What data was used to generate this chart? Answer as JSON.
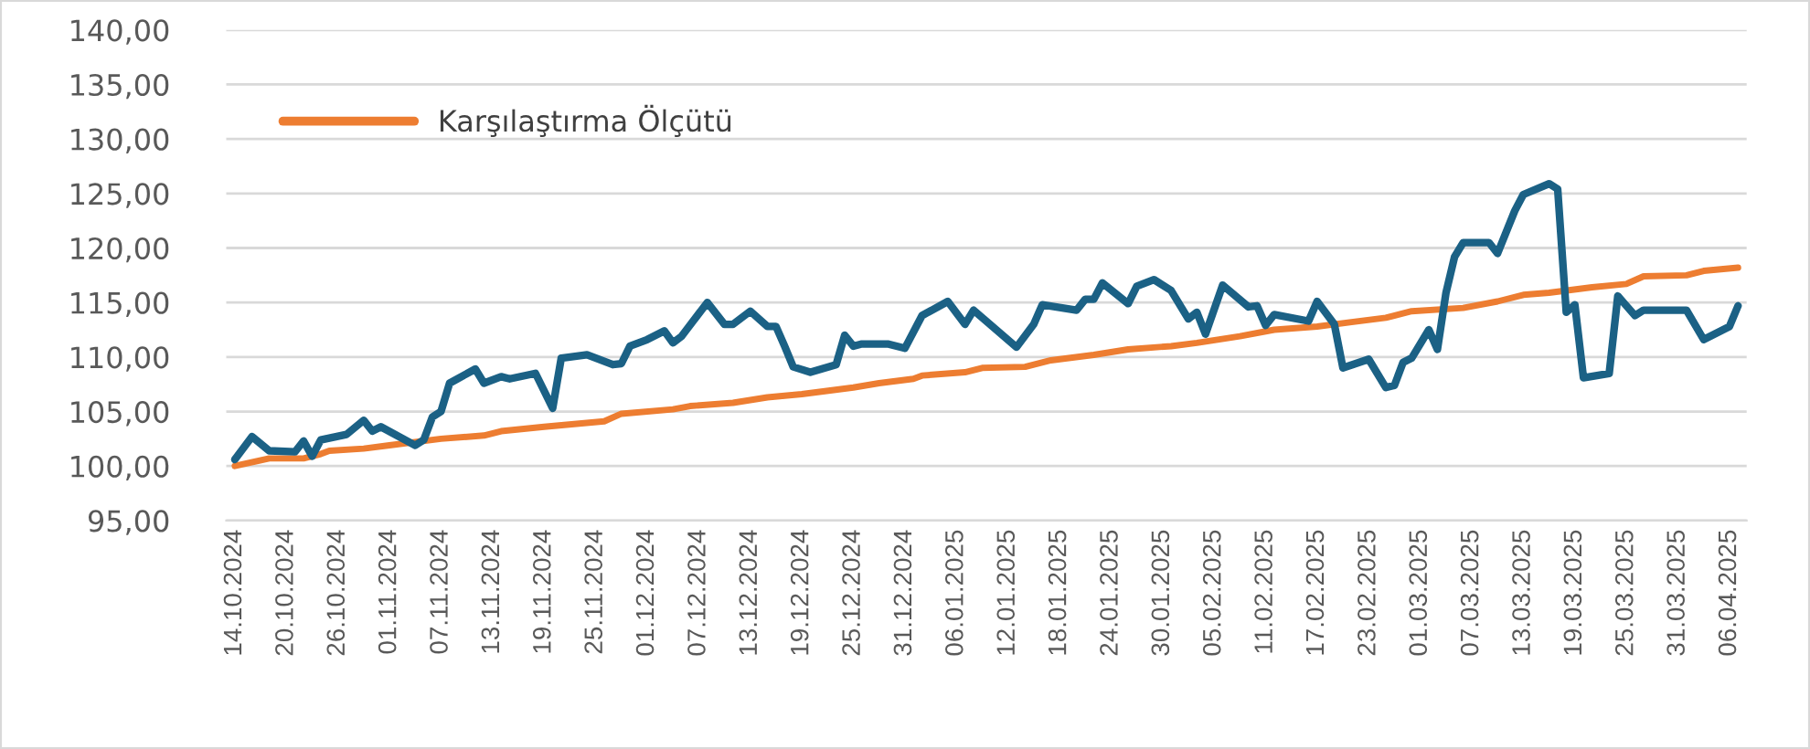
{
  "chart_data": {
    "type": "line",
    "xlim": [
      "2024-10-13",
      "2025-04-08"
    ],
    "xticks": [
      {
        "value": "2024-10-14",
        "label": "14.10.2024"
      },
      {
        "value": "2024-10-20",
        "label": "20.10.2024"
      },
      {
        "value": "2024-10-26",
        "label": "26.10.2024"
      },
      {
        "value": "2024-11-01",
        "label": "01.11.2024"
      },
      {
        "value": "2024-11-07",
        "label": "07.11.2024"
      },
      {
        "value": "2024-11-13",
        "label": "13.11.2024"
      },
      {
        "value": "2024-11-19",
        "label": "19.11.2024"
      },
      {
        "value": "2024-11-25",
        "label": "25.11.2024"
      },
      {
        "value": "2024-12-01",
        "label": "01.12.2024"
      },
      {
        "value": "2024-12-07",
        "label": "07.12.2024"
      },
      {
        "value": "2024-12-13",
        "label": "13.12.2024"
      },
      {
        "value": "2024-12-19",
        "label": "19.12.2024"
      },
      {
        "value": "2024-12-25",
        "label": "25.12.2024"
      },
      {
        "value": "2024-12-31",
        "label": "31.12.2024"
      },
      {
        "value": "2025-01-06",
        "label": "06.01.2025"
      },
      {
        "value": "2025-01-12",
        "label": "12.01.2025"
      },
      {
        "value": "2025-01-18",
        "label": "18.01.2025"
      },
      {
        "value": "2025-01-24",
        "label": "24.01.2025"
      },
      {
        "value": "2025-01-30",
        "label": "30.01.2025"
      },
      {
        "value": "2025-02-05",
        "label": "05.02.2025"
      },
      {
        "value": "2025-02-11",
        "label": "11.02.2025"
      },
      {
        "value": "2025-02-17",
        "label": "17.02.2025"
      },
      {
        "value": "2025-02-23",
        "label": "23.02.2025"
      },
      {
        "value": "2025-03-01",
        "label": "01.03.2025"
      },
      {
        "value": "2025-03-07",
        "label": "07.03.2025"
      },
      {
        "value": "2025-03-13",
        "label": "13.03.2025"
      },
      {
        "value": "2025-03-19",
        "label": "19.03.2025"
      },
      {
        "value": "2025-03-25",
        "label": "25.03.2025"
      },
      {
        "value": "2025-03-31",
        "label": "31.03.2025"
      },
      {
        "value": "2025-04-06",
        "label": "06.04.2025"
      }
    ],
    "ylim": [
      95,
      140
    ],
    "yticks": [
      {
        "value": 95,
        "label": "95,00"
      },
      {
        "value": 100,
        "label": "100,00"
      },
      {
        "value": 105,
        "label": "105,00"
      },
      {
        "value": 110,
        "label": "110,00"
      },
      {
        "value": 115,
        "label": "115,00"
      },
      {
        "value": 120,
        "label": "120,00"
      },
      {
        "value": 125,
        "label": "125,00"
      },
      {
        "value": 130,
        "label": "130,00"
      },
      {
        "value": 135,
        "label": "135,00"
      },
      {
        "value": 140,
        "label": "140,00"
      }
    ],
    "grid": "y",
    "legend": "top left",
    "marker": "none",
    "line_style": "solid",
    "series": [
      {
        "color": "#1b6185",
        "x": [
          "2024-10-14",
          "2024-10-16",
          "2024-10-18",
          "2024-10-21",
          "2024-10-22",
          "2024-10-23",
          "2024-10-24",
          "2024-10-27",
          "2024-10-29",
          "2024-10-30",
          "2024-10-31",
          "2024-11-04",
          "2024-11-05",
          "2024-11-06",
          "2024-11-07",
          "2024-11-08",
          "2024-11-11",
          "2024-11-12",
          "2024-11-14",
          "2024-11-15",
          "2024-11-18",
          "2024-11-20",
          "2024-11-21",
          "2024-11-24",
          "2024-11-27",
          "2024-11-28",
          "2024-11-29",
          "2024-12-01",
          "2024-12-03",
          "2024-12-04",
          "2024-12-05",
          "2024-12-08",
          "2024-12-10",
          "2024-12-11",
          "2024-12-13",
          "2024-12-15",
          "2024-12-16",
          "2024-12-17",
          "2024-12-18",
          "2024-12-20",
          "2024-12-23",
          "2024-12-24",
          "2024-12-25",
          "2024-12-26",
          "2024-12-29",
          "2024-12-31",
          "2025-01-02",
          "2025-01-05",
          "2025-01-07",
          "2025-01-08",
          "2025-01-13",
          "2025-01-15",
          "2025-01-16",
          "2025-01-20",
          "2025-01-21",
          "2025-01-22",
          "2025-01-23",
          "2025-01-26",
          "2025-01-27",
          "2025-01-29",
          "2025-01-31",
          "2025-02-02",
          "2025-02-03",
          "2025-02-04",
          "2025-02-06",
          "2025-02-09",
          "2025-02-10",
          "2025-02-11",
          "2025-02-12",
          "2025-02-16",
          "2025-02-17",
          "2025-02-19",
          "2025-02-20",
          "2025-02-23",
          "2025-02-25",
          "2025-02-26",
          "2025-02-27",
          "2025-02-28",
          "2025-03-02",
          "2025-03-03",
          "2025-03-04",
          "2025-03-05",
          "2025-03-06",
          "2025-03-09",
          "2025-03-10",
          "2025-03-12",
          "2025-03-13",
          "2025-03-16",
          "2025-03-17",
          "2025-03-18",
          "2025-03-19",
          "2025-03-20",
          "2025-03-23",
          "2025-03-24",
          "2025-03-26",
          "2025-03-27",
          "2025-04-01",
          "2025-04-03",
          "2025-04-06",
          "2025-04-07"
        ],
        "values": [
          100.6,
          102.7,
          101.4,
          101.3,
          102.3,
          100.9,
          102.4,
          102.9,
          104.2,
          103.2,
          103.6,
          101.9,
          102.4,
          104.5,
          105.0,
          107.6,
          108.9,
          107.6,
          108.2,
          108.0,
          108.5,
          105.3,
          109.9,
          110.2,
          109.3,
          109.4,
          111.0,
          111.6,
          112.4,
          111.3,
          111.9,
          115.0,
          113.0,
          113.0,
          114.2,
          112.8,
          112.8,
          111.0,
          109.1,
          108.6,
          109.3,
          112.0,
          111.0,
          111.2,
          111.2,
          110.8,
          113.8,
          115.1,
          113.0,
          114.3,
          110.9,
          113.0,
          114.8,
          114.3,
          115.3,
          115.3,
          116.8,
          114.9,
          116.5,
          117.1,
          116.1,
          113.5,
          114.1,
          112.1,
          116.6,
          114.6,
          114.7,
          112.9,
          113.9,
          113.3,
          115.1,
          113.0,
          109.0,
          109.8,
          107.2,
          107.4,
          109.5,
          109.9,
          112.5,
          110.7,
          115.9,
          119.2,
          120.5,
          120.5,
          119.5,
          123.4,
          124.9,
          125.9,
          125.4,
          114.1,
          114.8,
          108.1,
          108.5,
          115.6,
          113.8,
          114.3,
          114.3,
          111.6,
          112.8,
          114.7
        ]
      },
      {
        "name": "Karşılaştırma Ölçütü",
        "color": "#ed7d31",
        "x": [
          "2024-10-14",
          "2024-10-18",
          "2024-10-22",
          "2024-10-24",
          "2024-10-25",
          "2024-10-29",
          "2024-11-01",
          "2024-11-07",
          "2024-11-12",
          "2024-11-14",
          "2024-11-19",
          "2024-11-26",
          "2024-11-28",
          "2024-12-04",
          "2024-12-06",
          "2024-12-11",
          "2024-12-15",
          "2024-12-19",
          "2024-12-25",
          "2024-12-28",
          "2025-01-01",
          "2025-01-02",
          "2025-01-07",
          "2025-01-09",
          "2025-01-14",
          "2025-01-17",
          "2025-01-22",
          "2025-01-26",
          "2025-01-31",
          "2025-02-03",
          "2025-02-08",
          "2025-02-12",
          "2025-02-17",
          "2025-02-21",
          "2025-02-25",
          "2025-02-28",
          "2025-03-06",
          "2025-03-10",
          "2025-03-13",
          "2025-03-16",
          "2025-03-21",
          "2025-03-25",
          "2025-03-27",
          "2025-04-01",
          "2025-04-03",
          "2025-04-07"
        ],
        "values": [
          100.0,
          100.7,
          100.7,
          101.1,
          101.4,
          101.6,
          101.9,
          102.5,
          102.8,
          103.2,
          103.6,
          104.1,
          104.8,
          105.2,
          105.5,
          105.8,
          106.3,
          106.6,
          107.2,
          107.6,
          108.0,
          108.3,
          108.6,
          109.0,
          109.1,
          109.7,
          110.2,
          110.7,
          111.0,
          111.3,
          111.9,
          112.5,
          112.8,
          113.2,
          113.6,
          114.2,
          114.5,
          115.1,
          115.7,
          115.9,
          116.4,
          116.7,
          117.4,
          117.5,
          117.9,
          118.2
        ]
      }
    ]
  }
}
